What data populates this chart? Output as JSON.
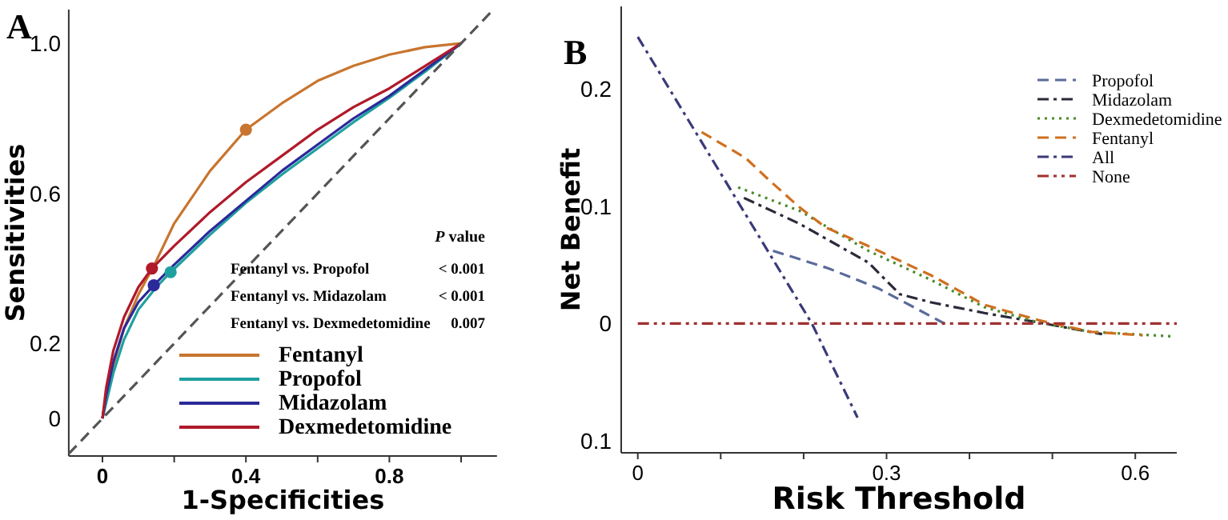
{
  "chart_data": [
    {
      "type": "line",
      "title": "A",
      "xlabel": "1-Specificities",
      "ylabel": "Sensitivities",
      "xlim": [
        -0.094,
        1.1
      ],
      "ylim": [
        -0.1,
        1.09
      ],
      "xticks": [
        0,
        {
          "value": 0.2,
          "label": null
        },
        0.4,
        {
          "value": 0.6,
          "label": null
        },
        0.8,
        {
          "value": 1,
          "label": null
        }
      ],
      "yticks": [
        0,
        0.2,
        0.6,
        {
          "value": 1,
          "label": "1.0"
        }
      ],
      "legend": "bottom right",
      "grid": false,
      "series": [
        {
          "name": "Fentanyl",
          "color": "#c8752f",
          "line_style": "solid",
          "x": [
            0,
            0.01,
            0.03,
            0.06,
            0.1,
            0.15,
            0.2,
            0.3,
            0.4,
            0.5,
            0.6,
            0.7,
            0.8,
            0.9,
            1
          ],
          "values": [
            0,
            0.06,
            0.14,
            0.24,
            0.33,
            0.42,
            0.52,
            0.66,
            0.77,
            0.84,
            0.9,
            0.94,
            0.97,
            0.99,
            1
          ]
        },
        {
          "name": "Propofol",
          "color": "#1fa0a0",
          "line_style": "solid",
          "x": [
            0,
            0.01,
            0.03,
            0.06,
            0.1,
            0.15,
            0.19,
            0.3,
            0.4,
            0.5,
            0.6,
            0.7,
            0.8,
            0.9,
            1
          ],
          "values": [
            0,
            0.04,
            0.12,
            0.21,
            0.29,
            0.35,
            0.39,
            0.49,
            0.575,
            0.65,
            0.72,
            0.79,
            0.855,
            0.925,
            1
          ]
        },
        {
          "name": "Midazolam",
          "color": "#2a2a9a",
          "line_style": "solid",
          "x": [
            0,
            0.01,
            0.03,
            0.06,
            0.1,
            0.143,
            0.2,
            0.3,
            0.4,
            0.5,
            0.6,
            0.7,
            0.8,
            0.9,
            1
          ],
          "values": [
            0,
            0.06,
            0.15,
            0.24,
            0.31,
            0.355,
            0.41,
            0.5,
            0.58,
            0.66,
            0.73,
            0.8,
            0.86,
            0.93,
            1
          ]
        },
        {
          "name": "Dexmedetomidine",
          "color": "#b01a2a",
          "line_style": "solid",
          "x": [
            0,
            0.01,
            0.03,
            0.06,
            0.1,
            0.138,
            0.2,
            0.3,
            0.4,
            0.5,
            0.6,
            0.7,
            0.8,
            0.9,
            1
          ],
          "values": [
            0,
            0.08,
            0.18,
            0.27,
            0.35,
            0.4,
            0.46,
            0.55,
            0.63,
            0.7,
            0.77,
            0.83,
            0.88,
            0.94,
            1
          ]
        },
        {
          "type": "scatter",
          "color": "#c8752f",
          "marker": "circle",
          "x": [
            0.4
          ],
          "values": [
            0.77
          ]
        },
        {
          "type": "scatter",
          "color": "#1fa0a0",
          "marker": "circle",
          "x": [
            0.19
          ],
          "values": [
            0.39
          ]
        },
        {
          "type": "scatter",
          "color": "#2a2a9a",
          "marker": "circle",
          "x": [
            0.143
          ],
          "values": [
            0.355
          ]
        },
        {
          "type": "scatter",
          "color": "#b01a2a",
          "marker": "circle",
          "x": [
            0.138
          ],
          "values": [
            0.4
          ]
        },
        {
          "color": "#555555",
          "line_style": "dashed",
          "x": [
            -0.094,
            1.09
          ],
          "values": [
            -0.094,
            1.09
          ]
        }
      ],
      "annotations": [
        "P value",
        "Fentanyl vs. Propofol",
        "< 0.001",
        "Fentanyl vs. Midazolam",
        "< 0.001",
        "Fentanyl vs. Dexmedetomidine",
        "0.007"
      ]
    },
    {
      "type": "line",
      "title": "B",
      "xlabel": "Risk Threshold",
      "ylabel": "Net Benefit",
      "xlim": [
        -0.02,
        0.65
      ],
      "ylim": [
        -0.11,
        0.27
      ],
      "xticks": [
        0,
        {
          "value": 0.1,
          "label": null
        },
        {
          "value": 0.2,
          "label": null
        },
        0.3,
        {
          "value": 0.4,
          "label": null
        },
        {
          "value": 0.5,
          "label": null
        },
        0.6
      ],
      "yticks": [
        {
          "value": -0.1,
          "label": "0.1"
        },
        0,
        0.1,
        0.2
      ],
      "legend": "top right",
      "grid": false,
      "series": [
        {
          "name": "Propofol",
          "color": "#5a6a9a",
          "line_style": "dashed",
          "x": [
            0.163,
            0.23,
            0.29,
            0.37
          ],
          "values": [
            0.062,
            0.047,
            0.03,
            0
          ]
        },
        {
          "name": "Midazolam",
          "color": "#2a2a3a",
          "line_style": "dashdot",
          "x": [
            0.128,
            0.195,
            0.278,
            0.316,
            0.354,
            0.418,
            0.483,
            0.56
          ],
          "values": [
            0.107,
            0.085,
            0.052,
            0.025,
            0.018,
            0.009,
            0.001,
            -0.009
          ]
        },
        {
          "name": "Dexmedetomidine",
          "color": "#4a8a2a",
          "line_style": "dotted",
          "x": [
            0.121,
            0.195,
            0.278,
            0.354,
            0.418,
            0.483,
            0.546,
            0.648
          ],
          "values": [
            0.116,
            0.096,
            0.062,
            0.037,
            0.014,
            0.001,
            -0.007,
            -0.011
          ]
        },
        {
          "name": "Fentanyl",
          "color": "#d07020",
          "line_style": "dashed",
          "x": [
            0.077,
            0.13,
            0.157,
            0.195,
            0.226,
            0.278,
            0.354,
            0.418,
            0.483,
            0.546,
            0.609
          ],
          "values": [
            0.163,
            0.141,
            0.123,
            0.099,
            0.082,
            0.066,
            0.041,
            0.016,
            0.003,
            -0.007,
            -0.01
          ]
        },
        {
          "name": "All",
          "color": "#3a3a7a",
          "line_style": "dashdot",
          "x": [
            0,
            0.21,
            0.265
          ],
          "values": [
            0.244,
            0,
            -0.08
          ]
        },
        {
          "name": "None",
          "color": "#a03030",
          "line_style": "dashdotdot",
          "x": [
            0,
            0.65
          ],
          "values": [
            0,
            0
          ]
        }
      ]
    }
  ]
}
